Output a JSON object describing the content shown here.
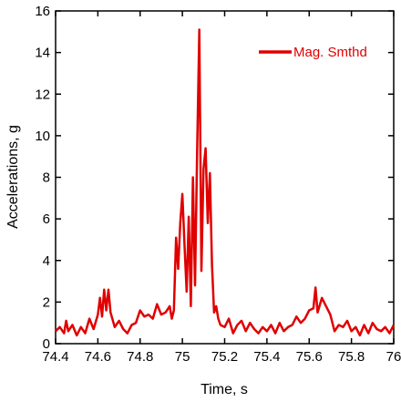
{
  "chart_data": {
    "type": "line",
    "xlabel": "Time, s",
    "ylabel": "Accelerations, g",
    "xlim": [
      74.4,
      76.0
    ],
    "ylim": [
      0,
      16
    ],
    "grid": false,
    "legend_position": "top-right",
    "x_ticks": [
      "74.4",
      "74.6",
      "74.8",
      "75",
      "75.2",
      "75.4",
      "75.6",
      "75.8",
      "76"
    ],
    "y_ticks": [
      "0",
      "2",
      "4",
      "6",
      "8",
      "10",
      "12",
      "14",
      "16"
    ],
    "series": [
      {
        "name": "Mag. Smthd",
        "color": "#e00000",
        "x": [
          74.4,
          74.42,
          74.44,
          74.45,
          74.46,
          74.48,
          74.5,
          74.52,
          74.54,
          74.56,
          74.58,
          74.6,
          74.61,
          74.62,
          74.63,
          74.64,
          74.65,
          74.66,
          74.68,
          74.7,
          74.72,
          74.74,
          74.76,
          74.78,
          74.8,
          74.82,
          74.84,
          74.86,
          74.88,
          74.9,
          74.92,
          74.94,
          74.95,
          74.96,
          74.97,
          74.98,
          74.99,
          75.0,
          75.01,
          75.02,
          75.03,
          75.04,
          75.05,
          75.06,
          75.07,
          75.08,
          75.09,
          75.1,
          75.11,
          75.12,
          75.13,
          75.14,
          75.15,
          75.16,
          75.17,
          75.18,
          75.2,
          75.22,
          75.24,
          75.26,
          75.28,
          75.3,
          75.32,
          75.34,
          75.36,
          75.38,
          75.4,
          75.42,
          75.44,
          75.46,
          75.48,
          75.5,
          75.52,
          75.54,
          75.56,
          75.58,
          75.6,
          75.62,
          75.63,
          75.64,
          75.66,
          75.68,
          75.7,
          75.72,
          75.74,
          75.76,
          75.78,
          75.8,
          75.82,
          75.84,
          75.86,
          75.88,
          75.9,
          75.92,
          75.94,
          75.96,
          75.98,
          76.0
        ],
        "y": [
          0.6,
          0.8,
          0.5,
          1.1,
          0.6,
          0.9,
          0.4,
          0.8,
          0.5,
          1.2,
          0.7,
          1.4,
          2.2,
          1.3,
          2.6,
          1.6,
          2.6,
          1.5,
          0.8,
          1.1,
          0.7,
          0.5,
          0.9,
          1.0,
          1.6,
          1.3,
          1.4,
          1.2,
          1.9,
          1.4,
          1.5,
          1.8,
          1.2,
          1.6,
          5.1,
          3.6,
          5.8,
          7.2,
          4.8,
          2.5,
          6.1,
          1.8,
          8.0,
          2.8,
          9.5,
          15.1,
          3.5,
          8.4,
          9.4,
          5.8,
          8.2,
          3.8,
          1.5,
          1.8,
          1.2,
          0.9,
          0.8,
          1.2,
          0.5,
          0.9,
          1.1,
          0.6,
          1.0,
          0.7,
          0.5,
          0.8,
          0.6,
          0.9,
          0.5,
          1.0,
          0.6,
          0.8,
          0.9,
          1.3,
          1.0,
          1.2,
          1.6,
          1.7,
          2.7,
          1.5,
          2.2,
          1.8,
          1.4,
          0.6,
          0.9,
          0.8,
          1.1,
          0.6,
          0.8,
          0.4,
          0.9,
          0.5,
          1.0,
          0.7,
          0.6,
          0.8,
          0.5,
          0.9
        ]
      }
    ]
  }
}
